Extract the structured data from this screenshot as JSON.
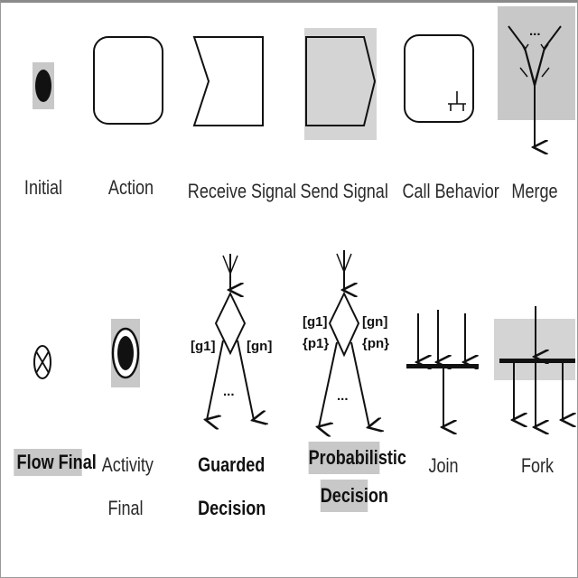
{
  "labels": {
    "initial": "Initial",
    "action": "Action",
    "receive_signal": "Receive Signal",
    "send_signal": "Send Signal",
    "call_behavior": "Call Behavior",
    "merge": "Merge",
    "flow_final": "Flow Final",
    "activity_final_1": "Activity",
    "activity_final_2": "Final",
    "guarded_decision_1": "Guarded",
    "guarded_decision_2": "Decision",
    "probabilistic_decision_1": "Probabilistic",
    "probabilistic_decision_2": "Decision",
    "join": "Join",
    "fork": "Fork"
  },
  "guards": {
    "g1": "[g1]",
    "gn": "[gn]",
    "p1": "{p1}",
    "pn": "{pn}",
    "ellipsis": "..."
  },
  "colors": {
    "highlight": "#c8c8c8",
    "stroke": "#111111"
  }
}
